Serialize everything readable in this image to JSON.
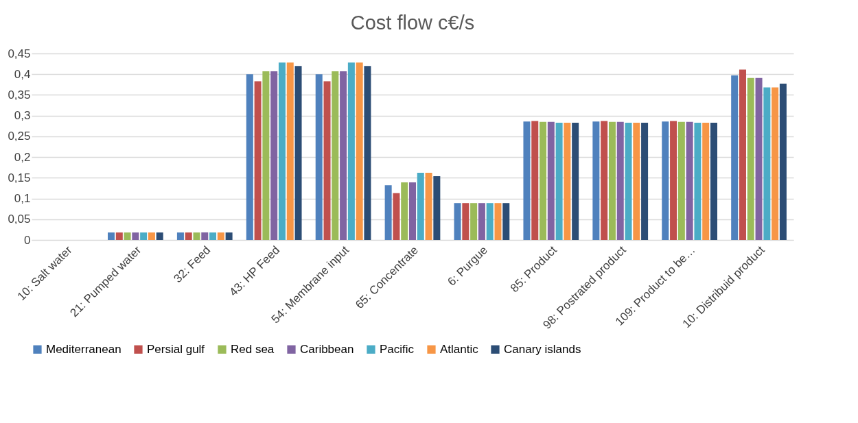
{
  "chart_data": {
    "type": "bar",
    "title": "Cost flow c€/s",
    "categories": [
      "10: Salt water",
      "21: Pumped water",
      "32: Feed",
      "43: HP Feed",
      "54: Membrane input",
      "65:  Concentrate",
      "6: Purgue",
      "85:  Product",
      "98: Postrated product",
      "109: Product to be…",
      "10: Distribuid product"
    ],
    "series": [
      {
        "name": "Mediterranean",
        "color": "#4f81bd",
        "values": [
          0,
          0.018,
          0.018,
          0.4,
          0.4,
          0.132,
          0.089,
          0.286,
          0.286,
          0.286,
          0.397
        ]
      },
      {
        "name": "Persial gulf",
        "color": "#c0504d",
        "values": [
          0,
          0.018,
          0.018,
          0.383,
          0.383,
          0.113,
          0.089,
          0.287,
          0.287,
          0.287,
          0.411
        ]
      },
      {
        "name": "Red sea",
        "color": "#9bbb59",
        "values": [
          0,
          0.018,
          0.018,
          0.407,
          0.407,
          0.139,
          0.089,
          0.285,
          0.285,
          0.285,
          0.391
        ]
      },
      {
        "name": "Caribbean",
        "color": "#8064a2",
        "values": [
          0,
          0.018,
          0.018,
          0.407,
          0.407,
          0.139,
          0.089,
          0.285,
          0.285,
          0.285,
          0.391
        ]
      },
      {
        "name": "Pacific",
        "color": "#4bacc6",
        "values": [
          0,
          0.018,
          0.018,
          0.428,
          0.428,
          0.162,
          0.089,
          0.283,
          0.283,
          0.283,
          0.368
        ]
      },
      {
        "name": "Atlantic",
        "color": "#f79646",
        "values": [
          0,
          0.018,
          0.018,
          0.428,
          0.428,
          0.162,
          0.089,
          0.283,
          0.283,
          0.283,
          0.368
        ]
      },
      {
        "name": "Canary islands",
        "color": "#2c4d75",
        "values": [
          0,
          0.018,
          0.018,
          0.42,
          0.42,
          0.154,
          0.089,
          0.283,
          0.283,
          0.283,
          0.377
        ]
      }
    ],
    "ylim": [
      0,
      0.45
    ],
    "yticks": [
      {
        "value": 0,
        "label": "0"
      },
      {
        "value": 0.05,
        "label": "0,05"
      },
      {
        "value": 0.1,
        "label": "0,1"
      },
      {
        "value": 0.15,
        "label": "0,15"
      },
      {
        "value": 0.2,
        "label": "0,2"
      },
      {
        "value": 0.25,
        "label": "0,25"
      },
      {
        "value": 0.3,
        "label": "0,3"
      },
      {
        "value": 0.35,
        "label": "0,35"
      },
      {
        "value": 0.4,
        "label": "0,4"
      },
      {
        "value": 0.45,
        "label": "0,45"
      }
    ],
    "grid": "y",
    "legend": "bottom"
  }
}
